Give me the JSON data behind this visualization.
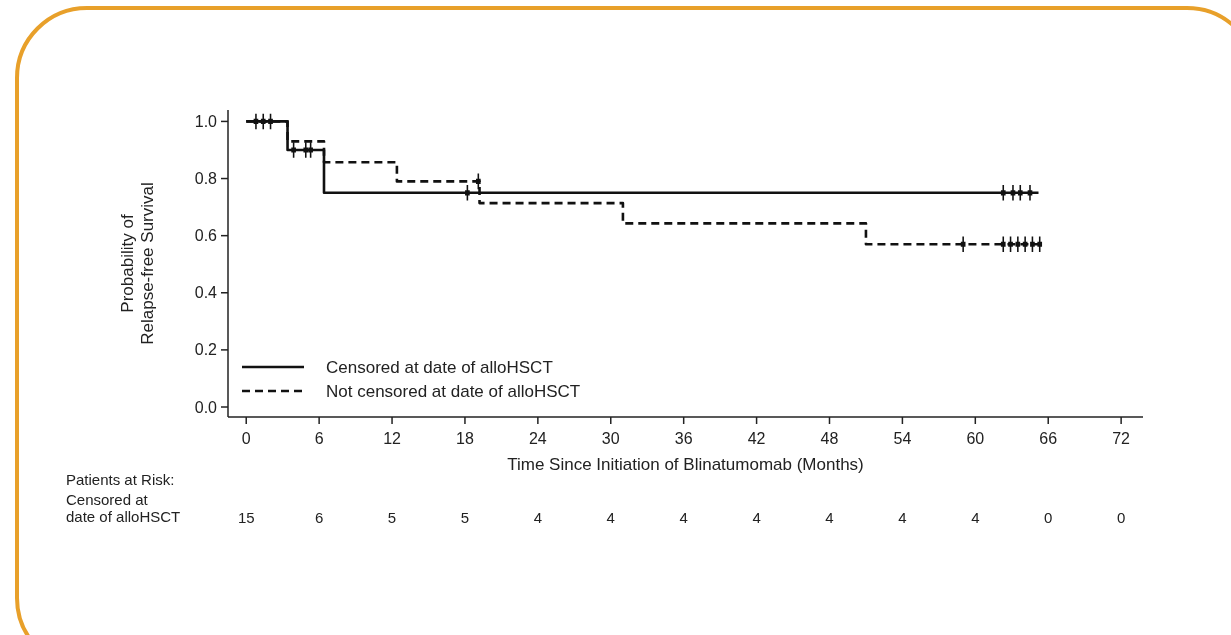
{
  "chart_data": {
    "type": "step",
    "ylabel": "Probability of\nRelapse-free Survival",
    "xlabel": "Time Since Initiation of Blinatumomab (Months)",
    "xlim": [
      -1.5,
      73.8
    ],
    "ylim": [
      -0.035,
      1.04
    ],
    "xticks": [
      0,
      6,
      12,
      18,
      24,
      30,
      36,
      42,
      48,
      54,
      60,
      66,
      72
    ],
    "yticks": [
      {
        "value": 0,
        "label": "0.0"
      },
      {
        "value": 0.2,
        "label": "0.2"
      },
      {
        "value": 0.4,
        "label": "0.4"
      },
      {
        "value": 0.6,
        "label": "0.6"
      },
      {
        "value": 0.8,
        "label": "0.8"
      },
      {
        "value": 1,
        "label": "1.0"
      }
    ],
    "grid": false,
    "legend": "bottom left",
    "series": [
      {
        "name": "Censored at date of alloHSCT",
        "color": "#111111",
        "line_style": "solid",
        "x": [
          0,
          3.4,
          6.4,
          65.2
        ],
        "values": [
          1,
          0.9,
          0.75,
          0.75
        ]
      },
      {
        "name": "Not censored at date of alloHSCT",
        "color": "#111111",
        "line_style": "dashed",
        "x": [
          0,
          3.4,
          6.4,
          12.4,
          19.2,
          31,
          51,
          65.3
        ],
        "values": [
          1,
          0.93,
          0.857,
          0.79,
          0.714,
          0.643,
          0.57,
          0.57
        ]
      },
      {
        "type": "scatter",
        "marker": "cross",
        "color": "#111111",
        "x": [
          0.8,
          1.4,
          2.0,
          3.9,
          4.9,
          5.3,
          18.2,
          62.3,
          63.1,
          63.7,
          64.5
        ],
        "values": [
          1,
          1,
          1,
          0.9,
          0.9,
          0.9,
          0.75,
          0.75,
          0.75,
          0.75,
          0.75
        ]
      },
      {
        "type": "scatter",
        "marker": "cross",
        "color": "#111111",
        "x": [
          19.1,
          59.0,
          62.3,
          62.9,
          63.5,
          64.1,
          64.7,
          65.3
        ],
        "values": [
          0.79,
          0.57,
          0.57,
          0.57,
          0.57,
          0.57,
          0.57,
          0.57
        ]
      }
    ],
    "annotations": [
      "Patients at Risk:",
      "Censored at\ndate of alloHSCT",
      "15",
      "6",
      "5",
      "5",
      "4",
      "4",
      "4",
      "4",
      "4",
      "4",
      "4",
      "0",
      "0"
    ]
  }
}
